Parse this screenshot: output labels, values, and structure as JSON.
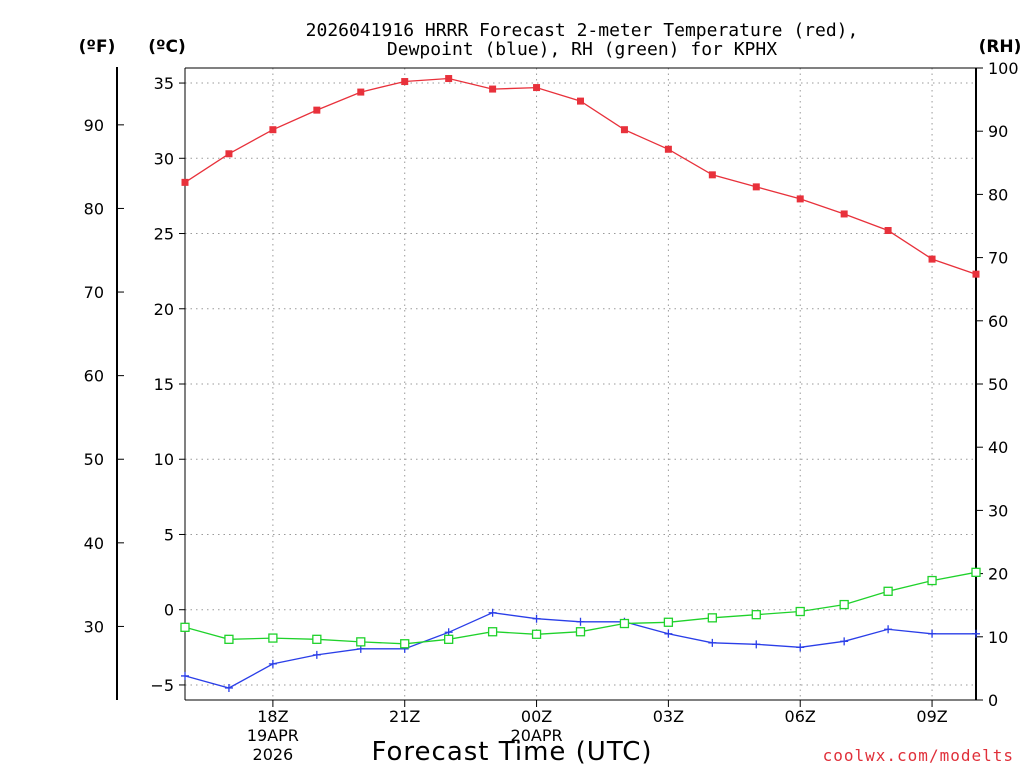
{
  "chart_data": {
    "type": "line",
    "title_line1": "2026041916 HRRR Forecast 2-meter Temperature (red),",
    "title_line2": "Dewpoint (blue), RH (green) for KPHX",
    "xlabel": "Forecast Time (UTC)",
    "credit": "coolwx.com/modelts",
    "unit_f": "(ºF)",
    "unit_c": "(ºC)",
    "unit_rh": "(RH)",
    "x_hours": [
      16,
      17,
      18,
      19,
      20,
      21,
      22,
      23,
      24,
      25,
      26,
      27,
      28,
      29,
      30,
      31,
      32,
      33,
      34
    ],
    "xlim": [
      16,
      34
    ],
    "x_ticks": [
      {
        "hour": 18,
        "lines": [
          "18Z",
          "19APR",
          "2026"
        ]
      },
      {
        "hour": 21,
        "lines": [
          "21Z"
        ]
      },
      {
        "hour": 24,
        "lines": [
          "00Z",
          "20APR"
        ]
      },
      {
        "hour": 27,
        "lines": [
          "03Z"
        ]
      },
      {
        "hour": 30,
        "lines": [
          "06Z"
        ]
      },
      {
        "hour": 33,
        "lines": [
          "09Z"
        ]
      }
    ],
    "celsius_axis": {
      "range": [
        -6,
        36
      ],
      "ticks": [
        35,
        30,
        25,
        20,
        15,
        10,
        5,
        0,
        -5
      ]
    },
    "fahrenheit_axis": {
      "ticks": [
        90,
        80,
        70,
        60,
        50,
        40,
        30
      ]
    },
    "rh_axis": {
      "range": [
        0,
        100
      ],
      "ticks": [
        100,
        90,
        80,
        70,
        60,
        50,
        40,
        30,
        20,
        10,
        0
      ]
    },
    "series": [
      {
        "name": "Temperature",
        "color": "#e8313b",
        "marker": "filled-square",
        "axis": "celsius",
        "values": [
          28.4,
          30.3,
          31.9,
          33.2,
          34.4,
          35.1,
          35.3,
          34.6,
          34.7,
          33.8,
          31.9,
          30.6,
          28.9,
          28.1,
          27.3,
          26.3,
          25.2,
          23.3,
          22.3
        ]
      },
      {
        "name": "Dewpoint",
        "color": "#2a3ee8",
        "marker": "plus",
        "axis": "celsius",
        "values": [
          -4.4,
          -5.2,
          -3.6,
          -3.0,
          -2.6,
          -2.6,
          -1.5,
          -0.2,
          -0.6,
          -0.8,
          -0.8,
          -1.6,
          -2.2,
          -2.3,
          -2.5,
          -2.1,
          -1.3,
          -1.6,
          -1.6
        ]
      },
      {
        "name": "RH",
        "color": "#1fd22b",
        "marker": "open-square",
        "axis": "rh",
        "values": [
          11.5,
          9.6,
          9.8,
          9.6,
          9.2,
          8.9,
          9.6,
          10.8,
          10.4,
          10.8,
          12.1,
          12.3,
          13.0,
          13.5,
          14.0,
          15.1,
          17.2,
          18.9,
          20.2
        ]
      }
    ]
  }
}
